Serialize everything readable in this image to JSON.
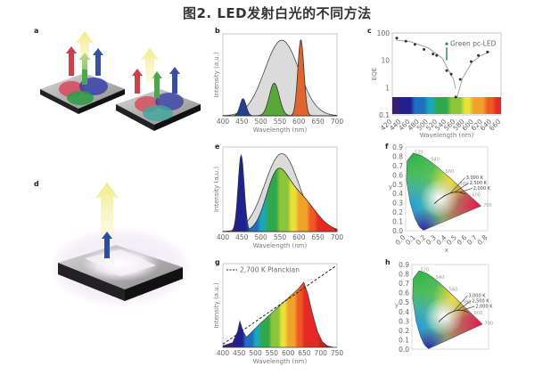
{
  "figure": {
    "title": "图2. LED发射白光的不同方法",
    "panel_labels": {
      "a": "a",
      "b": "b",
      "c": "c",
      "d": "d",
      "e": "e",
      "f": "f",
      "g": "g",
      "h": "h"
    }
  },
  "chart_data": [
    {
      "panel": "b",
      "type": "area",
      "xlabel": "Wavelength (nm)",
      "ylabel": "Intensity (a.u.)",
      "xlim": [
        400,
        700
      ],
      "xticks": [
        400,
        450,
        500,
        550,
        600,
        650,
        700
      ],
      "series": [
        {
          "peak_nm": 555,
          "sigma_nm": 45,
          "relative_intensity": 0.97,
          "color": "#d8d8d8"
        },
        {
          "peak_nm": 453,
          "sigma_nm": 8,
          "relative_intensity": 0.22,
          "color": "#243f91"
        },
        {
          "peak_nm": 535,
          "sigma_nm": 13,
          "relative_intensity": 0.42,
          "color": "#5aa83a"
        },
        {
          "peak_nm": 605,
          "sigma_nm": 8,
          "relative_intensity": 0.98,
          "color": "#e0662e"
        }
      ]
    },
    {
      "panel": "c",
      "type": "scatter",
      "yscale": "log",
      "xlabel": "Wavelength (nm)",
      "ylabel": "EQE",
      "xlim": [
        420,
        660
      ],
      "ylim": [
        0.1,
        100
      ],
      "xticks": [
        420,
        440,
        460,
        480,
        500,
        520,
        540,
        560,
        580,
        600,
        620,
        640,
        660
      ],
      "yticks": [
        "0.1",
        "1",
        "10",
        "100"
      ],
      "points": [
        [
          430,
          65
        ],
        [
          450,
          50
        ],
        [
          470,
          38
        ],
        [
          490,
          25
        ],
        [
          510,
          17
        ],
        [
          518,
          15
        ],
        [
          540,
          4.2
        ],
        [
          550,
          3.1
        ],
        [
          560,
          0.45
        ],
        [
          570,
          2
        ],
        [
          594,
          9
        ],
        [
          610,
          15
        ],
        [
          630,
          20
        ]
      ],
      "annotation": {
        "text": "Green pc-LED",
        "point": [
          540,
          40
        ],
        "from": [
          540,
          10
        ]
      }
    },
    {
      "panel": "e",
      "type": "area",
      "xlabel": "Wavelength (nm)",
      "ylabel": "Intensity (a.u.)",
      "xlim": [
        400,
        700
      ],
      "xticks": [
        400,
        450,
        500,
        550,
        600,
        650,
        700
      ],
      "series": [
        {
          "peak_nm": 555,
          "sigma_nm": 45,
          "relative_intensity": 0.97,
          "color": "#d8d8d8"
        },
        {
          "peak_nm": 448,
          "sigma_nm": 8,
          "relative_intensity": 0.95,
          "fill": "rainbow"
        },
        {
          "components": [
            {
              "peak_nm": 540,
              "sigma_nm": 28,
              "relative_intensity": 0.55
            },
            {
              "peak_nm": 595,
              "sigma_nm": 45,
              "relative_intensity": 0.45
            }
          ],
          "fill": "rainbow"
        }
      ]
    },
    {
      "panel": "f",
      "type": "scatter",
      "xlabel": "x",
      "ylabel": "y",
      "xlim": [
        0,
        0.8
      ],
      "ylim": [
        0,
        0.9
      ],
      "xticks": [
        "0.0",
        "0.1",
        "0.2",
        "0.3",
        "0.4",
        "0.5",
        "0.6",
        "0.7",
        "0.8"
      ],
      "yticks": [
        "0.0",
        "0.1",
        "0.2",
        "0.3",
        "0.4",
        "0.5",
        "0.6",
        "0.7",
        "0.8",
        "0.9"
      ],
      "locus_labels": [
        {
          "text": "520",
          "at": [
            0.07,
            0.83
          ]
        },
        {
          "text": "540",
          "at": [
            0.23,
            0.75
          ]
        },
        {
          "text": "560",
          "at": [
            0.37,
            0.62
          ]
        },
        {
          "text": "580",
          "at": [
            0.51,
            0.49
          ]
        },
        {
          "text": "600",
          "at": [
            0.63,
            0.37
          ]
        },
        {
          "text": "700",
          "at": [
            0.74,
            0.26
          ]
        }
      ],
      "cct_labels": [
        "3,000 K",
        "2,500 K",
        "2,000 K"
      ]
    },
    {
      "panel": "g",
      "type": "area",
      "xlabel": "Wavelength (nm)",
      "ylabel": "Intensity (a.u.)",
      "xlim": [
        400,
        750
      ],
      "xticks": [
        400,
        450,
        500,
        550,
        600,
        650,
        700,
        750
      ],
      "legend": "2,700 K Planckian",
      "spectrum": [
        [
          400,
          0.02
        ],
        [
          430,
          0.06
        ],
        [
          445,
          0.2
        ],
        [
          452,
          0.33
        ],
        [
          462,
          0.2
        ],
        [
          472,
          0.13
        ],
        [
          480,
          0.16
        ],
        [
          520,
          0.32
        ],
        [
          560,
          0.47
        ],
        [
          600,
          0.62
        ],
        [
          630,
          0.73
        ],
        [
          648,
          0.82
        ],
        [
          660,
          0.68
        ],
        [
          675,
          0.42
        ],
        [
          690,
          0.2
        ],
        [
          705,
          0.07
        ],
        [
          720,
          0.02
        ],
        [
          740,
          0.0
        ]
      ],
      "planckian": [
        [
          400,
          0.04
        ],
        [
          745,
          1.02
        ]
      ]
    },
    {
      "panel": "h",
      "type": "scatter",
      "xlabel": "x",
      "ylabel": "y",
      "xlim": [
        0,
        0.8
      ],
      "ylim": [
        0,
        0.9
      ],
      "yticks": [
        "0.0",
        "0.1",
        "0.2",
        "0.3",
        "0.4",
        "0.5",
        "0.6",
        "0.7",
        "0.8",
        "0.9"
      ],
      "locus_labels": [
        {
          "text": "520",
          "at": [
            0.07,
            0.83
          ]
        },
        {
          "text": "540",
          "at": [
            0.23,
            0.75
          ]
        },
        {
          "text": "560",
          "at": [
            0.37,
            0.62
          ]
        },
        {
          "text": "580",
          "at": [
            0.51,
            0.49
          ]
        },
        {
          "text": "600",
          "at": [
            0.63,
            0.37
          ]
        },
        {
          "text": "700",
          "at": [
            0.74,
            0.26
          ]
        }
      ],
      "cct_labels": [
        "3,000 K",
        "2,500 K",
        "2,000 K"
      ]
    }
  ]
}
